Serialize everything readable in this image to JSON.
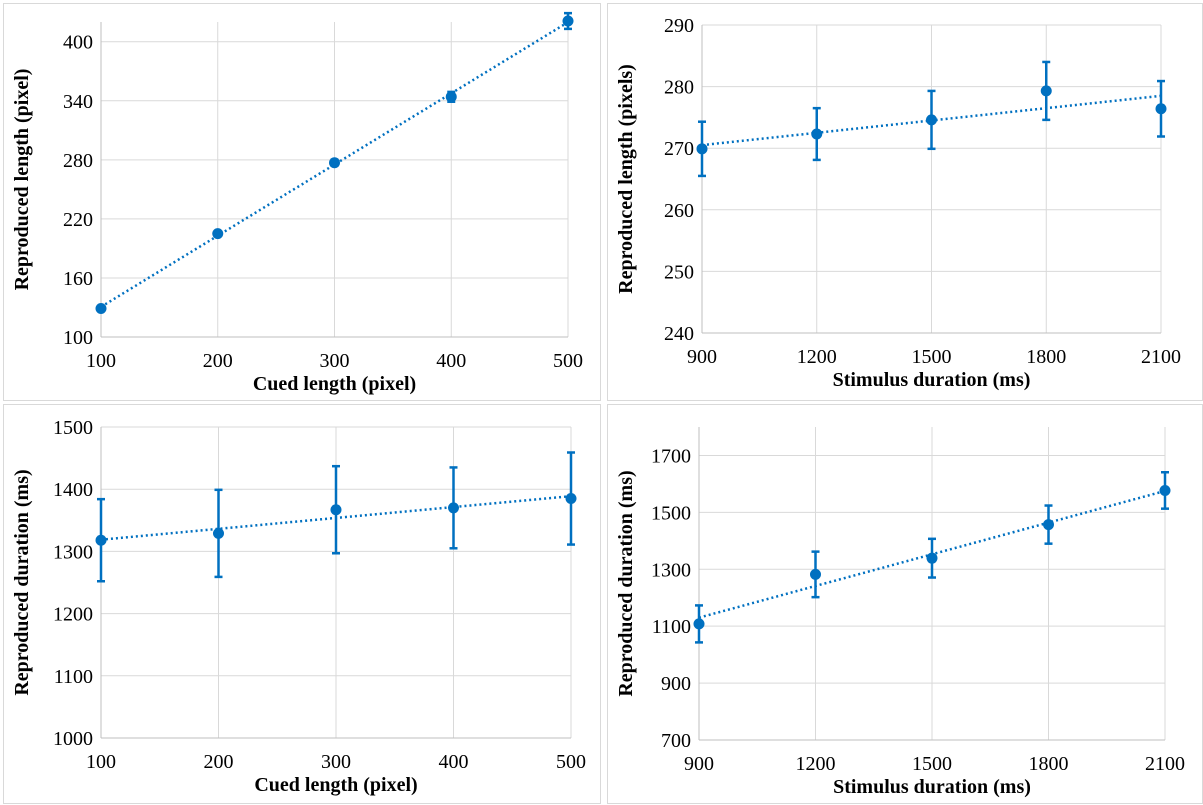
{
  "chart_data": [
    {
      "type": "scatter",
      "xlabel": "Cued length (pixel)",
      "ylabel": "Reproduced length (pixel)",
      "xlim": [
        100,
        500
      ],
      "ylim": [
        100,
        420
      ],
      "xticks": [
        100,
        200,
        300,
        400,
        500
      ],
      "yticks": [
        100,
        160,
        220,
        280,
        340,
        400
      ],
      "grid": true,
      "trendline": "linear (dotted)",
      "series": [
        {
          "x": [
            100,
            200,
            300,
            400,
            500
          ],
          "y": [
            129,
            205,
            277,
            344,
            421
          ],
          "error": [
            2,
            2,
            3,
            5,
            8
          ]
        }
      ]
    },
    {
      "type": "scatter",
      "xlabel": "Stimulus duration (ms)",
      "ylabel": "Reproduced length (pixels)",
      "xlim": [
        900,
        2100
      ],
      "ylim": [
        240,
        290
      ],
      "xticks": [
        900,
        1200,
        1500,
        1800,
        2100
      ],
      "yticks": [
        240,
        250,
        260,
        270,
        280,
        290
      ],
      "grid": true,
      "trendline": "linear (dotted)",
      "series": [
        {
          "x": [
            900,
            1200,
            1500,
            1800,
            2100
          ],
          "y": [
            269.9,
            272.3,
            274.6,
            279.3,
            276.4
          ],
          "error": [
            4.4,
            4.2,
            4.7,
            4.7,
            4.5
          ]
        }
      ]
    },
    {
      "type": "scatter",
      "xlabel": "Cued length (pixel)",
      "ylabel": "Reproduced duration (ms)",
      "xlim": [
        100,
        500
      ],
      "ylim": [
        1000,
        1500
      ],
      "xticks": [
        100,
        200,
        300,
        400,
        500
      ],
      "yticks": [
        1000,
        1100,
        1200,
        1300,
        1400,
        1500
      ],
      "grid": true,
      "trendline": "linear (dotted)",
      "series": [
        {
          "x": [
            100,
            200,
            300,
            400,
            500
          ],
          "y": [
            1318,
            1329,
            1367,
            1370,
            1385
          ],
          "error": [
            66,
            70,
            70,
            65,
            74
          ]
        }
      ]
    },
    {
      "type": "scatter",
      "xlabel": "Stimulus duration (ms)",
      "ylabel": "Reproduced duration (ms)",
      "xlim": [
        900,
        2100
      ],
      "ylim": [
        700,
        1800
      ],
      "xticks": [
        900,
        1200,
        1500,
        1800,
        2100
      ],
      "yticks": [
        700,
        900,
        1100,
        1300,
        1500,
        1700
      ],
      "grid": true,
      "trendline": "linear (dotted)",
      "series": [
        {
          "x": [
            900,
            1200,
            1500,
            1800,
            2100
          ],
          "y": [
            1108,
            1282,
            1339,
            1457,
            1577
          ],
          "error": [
            65,
            80,
            68,
            67,
            64
          ]
        }
      ]
    }
  ],
  "colors": {
    "series": "#0070c0",
    "grid": "#d9d9d9",
    "axis": "#bfbfbf"
  }
}
